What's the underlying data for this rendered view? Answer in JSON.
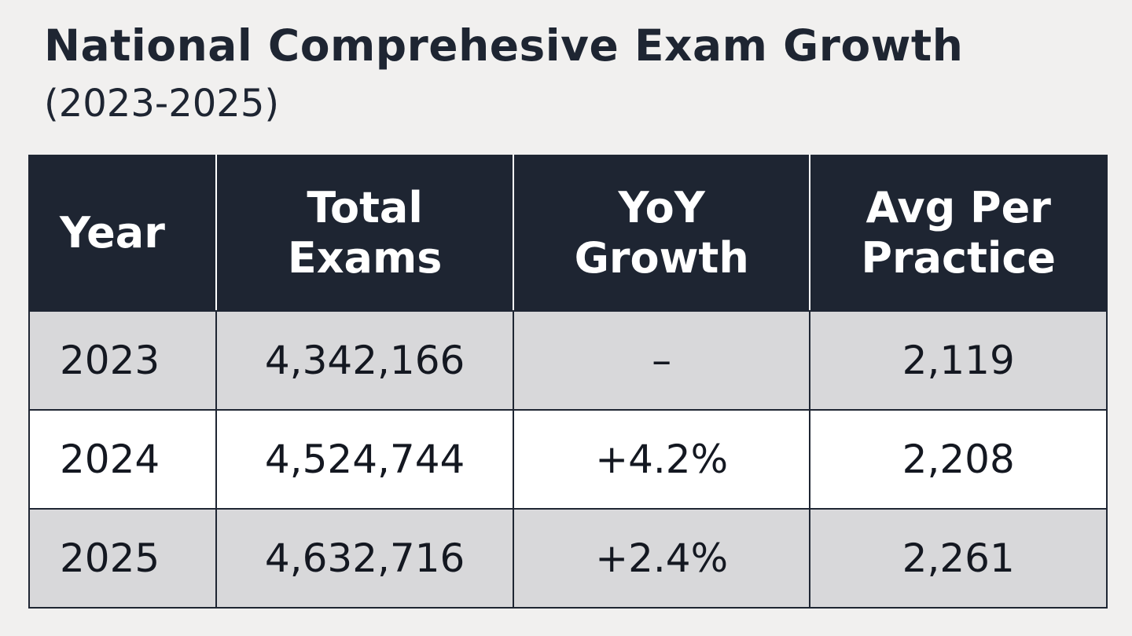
{
  "header": {
    "title": "National Comprehesive Exam Growth",
    "subtitle": "(2023-2025)"
  },
  "chart_data": {
    "type": "table",
    "columns": [
      "Year",
      "Total Exams",
      "YoY Growth",
      "Avg Per Practice"
    ],
    "column_lines": [
      [
        "Year"
      ],
      [
        "Total",
        "Exams"
      ],
      [
        "YoY",
        "Growth"
      ],
      [
        "Avg Per",
        "Practice"
      ]
    ],
    "rows": [
      [
        "2023",
        "4,342,166",
        "–",
        "2,119"
      ],
      [
        "2024",
        "4,524,744",
        "+4.2%",
        "2,208"
      ],
      [
        "2025",
        "4,632,716",
        "+2.4%",
        "2,261"
      ]
    ]
  },
  "colors": {
    "page_background": "#f1f0ef",
    "header_background": "#1e2532",
    "header_text": "#ffffff",
    "row_shaded": "#d8d8da",
    "row_plain": "#ffffff",
    "border": "#1f2633"
  }
}
